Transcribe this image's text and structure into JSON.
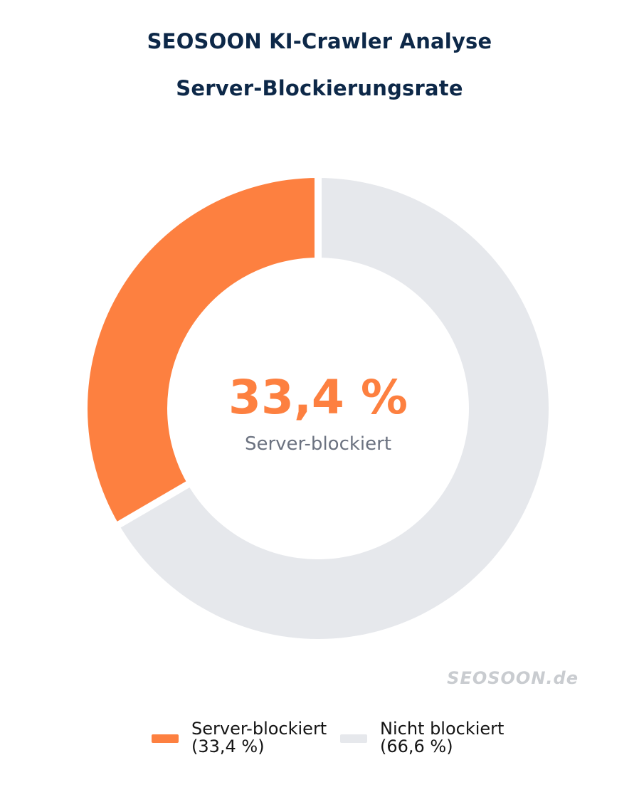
{
  "header": {
    "title": "SEOSOON KI-Crawler Analyse",
    "subtitle": "Server-Blockierungsrate"
  },
  "chart_data": {
    "type": "pie",
    "variant": "donut",
    "title": "SEOSOON KI-Crawler Analyse",
    "subtitle": "Server-Blockierungsrate",
    "categories": [
      "Server-blockiert",
      "Nicht blockiert"
    ],
    "values": [
      33.4,
      66.6
    ],
    "value_labels": [
      "33,4 %",
      "66,6 %"
    ],
    "colors": [
      "#fd8040",
      "#e6e8ec"
    ],
    "start_angle": 90,
    "direction": "counterclockwise",
    "donut_hole_ratio": 0.65,
    "slice_gap_color": "#ffffff",
    "center_value": "33,4 %",
    "center_label": "Server-blockiert",
    "legend_position": "bottom"
  },
  "legend": {
    "items": [
      {
        "label": "Server-blockiert",
        "value_label": "(33,4 %)",
        "color": "#fd8040"
      },
      {
        "label": "Nicht blockiert",
        "value_label": "(66,6 %)",
        "color": "#e6e8ec"
      }
    ]
  },
  "watermark": {
    "text": "SEOSOON.de"
  },
  "colors": {
    "navy": "#0d2848",
    "accent": "#fd8040",
    "slice_gray": "#e6e8ec",
    "muted_label": "#6b7280",
    "watermark": "#c9ccd0",
    "legend_text": "#141414",
    "background": "#ffffff"
  }
}
